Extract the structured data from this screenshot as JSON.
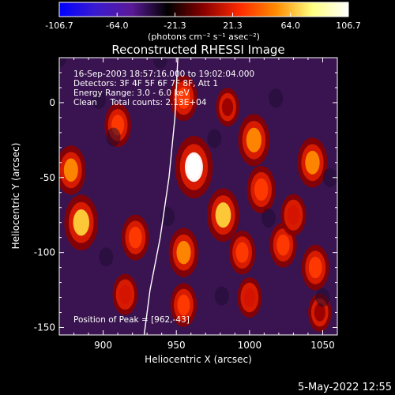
{
  "chart_data": {
    "type": "heatmap",
    "title": "Reconstructed RHESSI Image",
    "xlabel": "Heliocentric X (arcsec)",
    "ylabel": "Heliocentric Y (arcsec)",
    "xlim": [
      870,
      1060
    ],
    "ylim": [
      -155,
      30
    ],
    "x_ticks": [
      900,
      950,
      1000,
      1050
    ],
    "y_ticks": [
      0,
      -50,
      -100,
      -150
    ],
    "colorbar": {
      "label_html": "(photons cm⁻² s⁻¹ asec⁻²)",
      "ticks": [
        "-106.7",
        "-64.0",
        "-21.3",
        "21.3",
        "64.0",
        "106.7"
      ],
      "range": [
        -106.7,
        106.7
      ],
      "colors": [
        "#0000ff",
        "#3a1bd0",
        "#5a1a98",
        "#000000",
        "#8a0000",
        "#ff2a00",
        "#ff8c00",
        "#ffff80",
        "#ffffff"
      ]
    },
    "annotations": {
      "time": "16-Sep-2003 18:57:16.000 to 19:02:04.000",
      "detectors": "Detectors: 3F 4F 5F 6F 7F 8F, Att 1",
      "energy": "Energy Range: 3.0 - 6.0 keV",
      "clean": "Clean     Total counts: 2.13E+04",
      "peak": "Position of Peak = [962,-43]"
    },
    "limb_curve": [
      [
        951,
        30
      ],
      [
        949,
        -10
      ],
      [
        945,
        -50
      ],
      [
        939,
        -90
      ],
      [
        932,
        -125
      ],
      [
        928,
        -155
      ]
    ],
    "sources": [
      {
        "x": 962,
        "y": -43,
        "value": 106.7
      },
      {
        "x": 955,
        "y": 3,
        "value": 60
      },
      {
        "x": 955,
        "y": -100,
        "value": 70
      },
      {
        "x": 955,
        "y": -135,
        "value": 55
      },
      {
        "x": 910,
        "y": -15,
        "value": 55
      },
      {
        "x": 878,
        "y": -45,
        "value": 70
      },
      {
        "x": 885,
        "y": -80,
        "value": 88
      },
      {
        "x": 922,
        "y": -90,
        "value": 60
      },
      {
        "x": 915,
        "y": -128,
        "value": 48
      },
      {
        "x": 982,
        "y": -75,
        "value": 82
      },
      {
        "x": 985,
        "y": -3,
        "value": 40
      },
      {
        "x": 995,
        "y": -100,
        "value": 55
      },
      {
        "x": 1000,
        "y": -130,
        "value": 45
      },
      {
        "x": 1003,
        "y": -25,
        "value": 78
      },
      {
        "x": 1008,
        "y": -58,
        "value": 65
      },
      {
        "x": 1023,
        "y": -95,
        "value": 58
      },
      {
        "x": 1030,
        "y": -75,
        "value": 50
      },
      {
        "x": 1043,
        "y": -40,
        "value": 72
      },
      {
        "x": 1045,
        "y": -110,
        "value": 60
      },
      {
        "x": 1048,
        "y": -140,
        "value": 40
      }
    ]
  },
  "footer": {
    "date": "5-May-2022 12:55"
  }
}
